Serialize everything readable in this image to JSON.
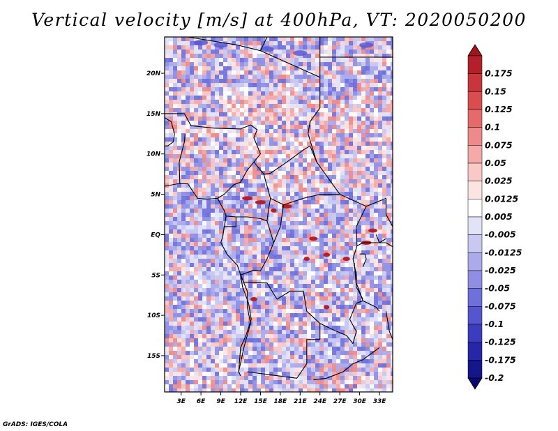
{
  "title": "Vertical velocity [m/s] at 400hPa, VT: 2020050200",
  "credit": "GrADS: IGES/COLA",
  "map": {
    "y_ticks": [
      {
        "lat": 20,
        "label": "20N"
      },
      {
        "lat": 15,
        "label": "15N"
      },
      {
        "lat": 10,
        "label": "10N"
      },
      {
        "lat": 5,
        "label": "5N"
      },
      {
        "lat": 0,
        "label": "EQ"
      },
      {
        "lat": -5,
        "label": "5S"
      },
      {
        "lat": -10,
        "label": "10S"
      },
      {
        "lat": -15,
        "label": "15S"
      }
    ],
    "x_ticks": [
      {
        "lon": 3,
        "label": "3E"
      },
      {
        "lon": 6,
        "label": "6E"
      },
      {
        "lon": 9,
        "label": "9E"
      },
      {
        "lon": 12,
        "label": "12E"
      },
      {
        "lon": 15,
        "label": "15E"
      },
      {
        "lon": 18,
        "label": "18E"
      },
      {
        "lon": 21,
        "label": "21E"
      },
      {
        "lon": 24,
        "label": "24E"
      },
      {
        "lon": 27,
        "label": "27E"
      },
      {
        "lon": 30,
        "label": "30E"
      },
      {
        "lon": 33,
        "label": "33E"
      }
    ],
    "lon_range": [
      0.5,
      35
    ],
    "lat_range": [
      -19.5,
      24.5
    ]
  },
  "colorbar": {
    "labels": [
      "0.175",
      "0.15",
      "0.125",
      "0.1",
      "0.075",
      "0.05",
      "0.025",
      "0.0125",
      "0.005",
      "-0.005",
      "-0.0125",
      "-0.025",
      "-0.05",
      "-0.075",
      "-0.1",
      "-0.125",
      "-0.175",
      "-0.2"
    ],
    "colors": [
      "#a1131b",
      "#b3202a",
      "#c8363c",
      "#d94d4e",
      "#e56b6b",
      "#ee8b8a",
      "#f5a9a8",
      "#f9c8c7",
      "#fce4e3",
      "#ffffff",
      "#e2e2f8",
      "#c8c8f2",
      "#ababec",
      "#8e8ee4",
      "#7070dc",
      "#5555d0",
      "#3c3cc0",
      "#2626a8",
      "#15158c",
      "#0a0a6e"
    ]
  }
}
